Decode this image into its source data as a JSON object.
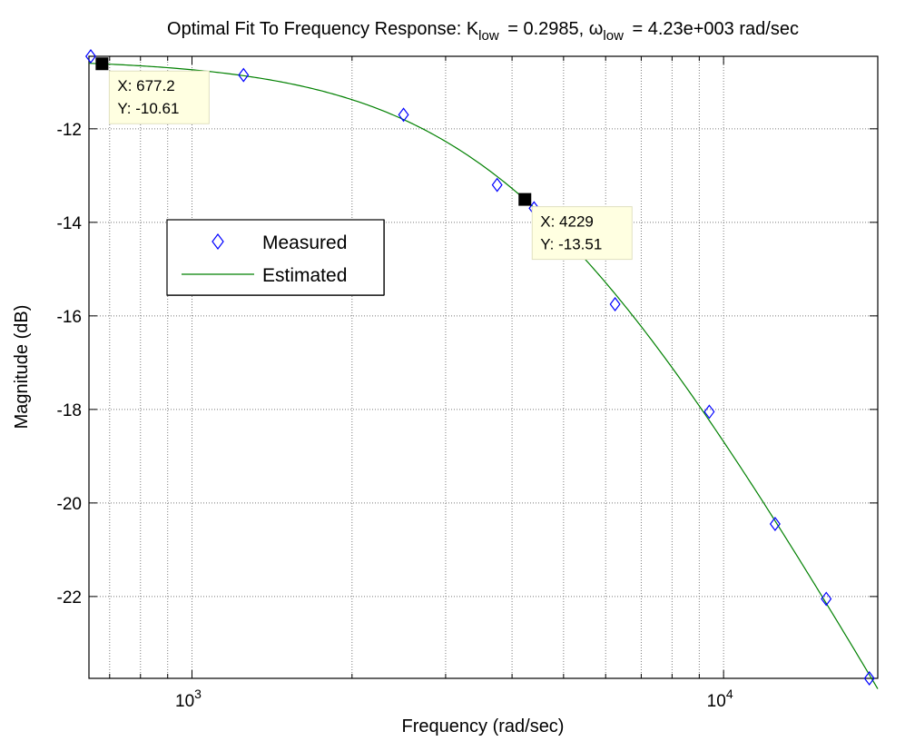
{
  "chart_data": {
    "type": "line",
    "title_parts": [
      "Optimal Fit To Frequency Response:  K",
      "low",
      " = 0.2985, ",
      "ω",
      "low",
      " = 4.23e+003 rad/sec"
    ],
    "xlabel": "Frequency (rad/sec)",
    "ylabel": "Magnitude (dB)",
    "xscale": "log",
    "xlim": [
      640,
      19500
    ],
    "ylim": [
      -23.75,
      -10.45
    ],
    "x_major_ticks": [
      1000,
      10000
    ],
    "x_tick_labels": [
      {
        "base": "10",
        "exp": "3"
      },
      {
        "base": "10",
        "exp": "4"
      }
    ],
    "x_minor_ticks": [
      700,
      800,
      900,
      2000,
      3000,
      4000,
      5000,
      6000,
      7000,
      8000,
      9000
    ],
    "y_ticks": [
      -12,
      -14,
      -16,
      -18,
      -20,
      -22
    ],
    "y_tick_labels": [
      "-12",
      "-14",
      "-16",
      "-18",
      "-20",
      "-22"
    ],
    "grid": true,
    "legend_position": "upper-left",
    "series": [
      {
        "name": "Measured",
        "style": "marker",
        "marker": "diamond",
        "color": "#0000ff",
        "x": [
          645,
          1250,
          2500,
          3750,
          4400,
          5000,
          6250,
          9400,
          12500,
          15600,
          18800
        ],
        "y": [
          -10.45,
          -10.85,
          -11.7,
          -13.2,
          -13.7,
          -14.45,
          -15.75,
          -18.05,
          -20.45,
          -22.05,
          -23.75
        ]
      },
      {
        "name": "Estimated",
        "style": "line",
        "color": "#008000",
        "model": "first-order low-pass",
        "K": 0.2985,
        "omega": 4230
      }
    ],
    "datatips": [
      {
        "x": 677.2,
        "y": -10.61,
        "x_text": "X: 677.2",
        "y_text": "Y: -10.61"
      },
      {
        "x": 4229,
        "y": -13.51,
        "x_text": "X: 4229",
        "y_text": "Y: -13.51"
      }
    ]
  }
}
